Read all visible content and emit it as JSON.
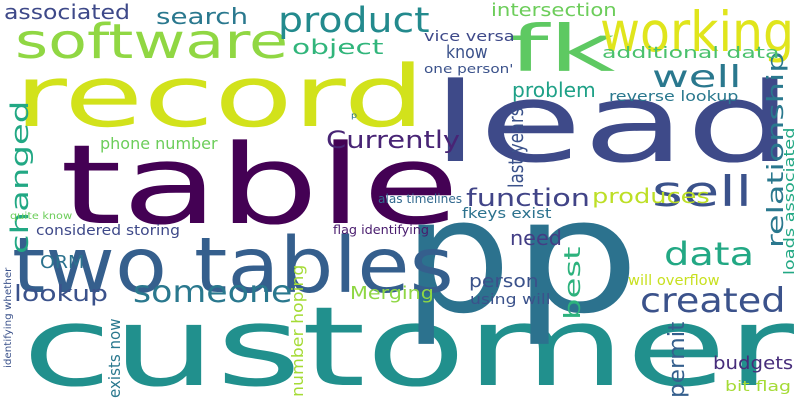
{
  "words": [
    {
      "text": "customer",
      "color": "#21908d"
    },
    {
      "text": "table",
      "color": "#440154"
    },
    {
      "text": "record",
      "color": "#d2e21b"
    },
    {
      "text": "lead",
      "color": "#3e4a89"
    },
    {
      "text": "p",
      "color": "#2c728e"
    },
    {
      "text": "p",
      "color": "#2c728e"
    },
    {
      "text": "two tables",
      "color": "#355f8d"
    },
    {
      "text": "fk",
      "color": "#5ec962"
    },
    {
      "text": "software",
      "color": "#90d743"
    },
    {
      "text": "working",
      "color": "#e0e51c"
    },
    {
      "text": "product",
      "color": "#238a8d"
    },
    {
      "text": "created",
      "color": "#3b528b"
    },
    {
      "text": "someone",
      "color": "#2a788e"
    },
    {
      "text": "data",
      "color": "#22a884"
    },
    {
      "text": "sell",
      "color": "#3b528b"
    },
    {
      "text": "well",
      "color": "#2a788e"
    },
    {
      "text": "Currently",
      "color": "#482475"
    },
    {
      "text": "function",
      "color": "#414487"
    },
    {
      "text": "changed",
      "color": "#22a884"
    },
    {
      "text": "produces",
      "color": "#bddf26"
    },
    {
      "text": "search",
      "color": "#2a788e"
    },
    {
      "text": "intersection",
      "color": "#6ccd5a"
    },
    {
      "text": "object",
      "color": "#31b57b"
    },
    {
      "text": "associated",
      "color": "#3e4989"
    },
    {
      "text": "know",
      "color": "#3b528b"
    },
    {
      "text": "problem",
      "color": "#1fa187"
    },
    {
      "text": "relationship",
      "color": "#2a788e"
    },
    {
      "text": "lookup",
      "color": "#3b528b"
    },
    {
      "text": "need",
      "color": "#433e85"
    },
    {
      "text": "best",
      "color": "#2db27d"
    },
    {
      "text": "Merging",
      "color": "#8fd744"
    },
    {
      "text": "ORM",
      "color": "#2c728e"
    },
    {
      "text": "person",
      "color": "#3b528b"
    },
    {
      "text": "budgets",
      "color": "#472d7b"
    },
    {
      "text": "permit",
      "color": "#355f8d"
    },
    {
      "text": "additional data",
      "color": "#4ac16d"
    },
    {
      "text": "vice versa",
      "color": "#3e4989"
    },
    {
      "text": "one person'",
      "color": "#3b528b"
    },
    {
      "text": "reverse lookup",
      "color": "#2a788e"
    },
    {
      "text": "last years",
      "color": "#3b528b"
    },
    {
      "text": "phone number",
      "color": "#6ccd5a"
    },
    {
      "text": "fkeys exist",
      "color": "#2c728e"
    },
    {
      "text": "considered storing",
      "color": "#3e4989"
    },
    {
      "text": "exists now",
      "color": "#2a788e"
    },
    {
      "text": "number hoping",
      "color": "#a5db36"
    },
    {
      "text": "using will",
      "color": "#3b528b"
    },
    {
      "text": "will overflow",
      "color": "#c8e020"
    },
    {
      "text": "loads associated",
      "color": "#22a884"
    },
    {
      "text": "bit flag",
      "color": "#a5db36"
    },
    {
      "text": "alas timelines",
      "color": "#31688e"
    },
    {
      "text": "flag identifying",
      "color": "#481b6d"
    },
    {
      "text": "quite know",
      "color": "#6ccd5a"
    },
    {
      "text": "identifying whether",
      "color": "#3b528b"
    },
    {
      "text": "p",
      "color": "#2a788e"
    }
  ]
}
